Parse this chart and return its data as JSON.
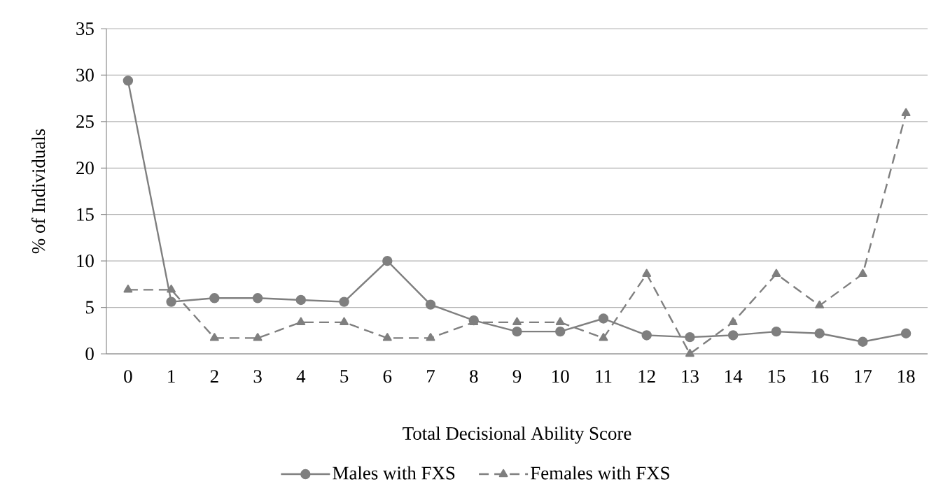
{
  "chart_data": {
    "type": "line",
    "xlabel": "Total Decisional Ability Score",
    "ylabel": "% of Individuals",
    "categories": [
      "0",
      "1",
      "2",
      "3",
      "4",
      "5",
      "6",
      "7",
      "8",
      "9",
      "10",
      "11",
      "12",
      "13",
      "14",
      "15",
      "16",
      "17",
      "18"
    ],
    "series": [
      {
        "name": "Males with FXS",
        "color": "#7f7f7f",
        "marker": "circle",
        "line_style": "solid",
        "values": [
          29.4,
          5.6,
          6.0,
          6.0,
          5.8,
          5.6,
          10.0,
          5.3,
          3.6,
          2.4,
          2.4,
          3.8,
          2.0,
          1.8,
          2.0,
          2.4,
          2.2,
          1.3,
          2.2
        ]
      },
      {
        "name": "Females with FXS",
        "color": "#7f7f7f",
        "marker": "triangle",
        "line_style": "dashed",
        "values": [
          6.9,
          6.9,
          1.7,
          1.7,
          3.4,
          3.4,
          1.7,
          1.7,
          3.4,
          3.4,
          3.4,
          1.7,
          8.6,
          0,
          3.4,
          8.6,
          5.2,
          8.6,
          25.9
        ]
      }
    ],
    "ylim": [
      0,
      35
    ],
    "yticks": [
      0,
      5,
      10,
      15,
      20,
      25,
      30,
      35
    ],
    "grid": "y",
    "legend": "bottom"
  }
}
